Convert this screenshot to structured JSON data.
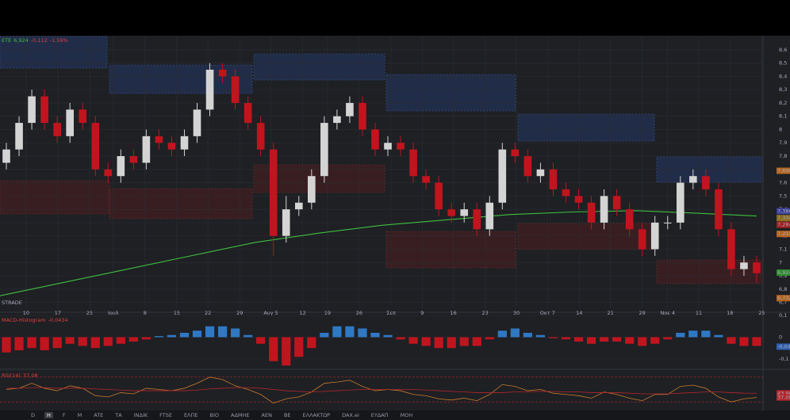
{
  "toolbar": {
    "items": [
      "D",
      "H",
      "F",
      "M",
      "ATE",
      "ΤΑ",
      "ΙΝΔΙΚ",
      "FTSE",
      "ΕΛΠΕ",
      "ΒΙΟ",
      "ΑΔΜΗΕ",
      "ΑΕΝ",
      "ΒΕ",
      "ΕΛΛΑΚΤΩΡ",
      "DAX.ei",
      "ΕΥΔΑΠ",
      "ΜΟΗ"
    ],
    "active": 1
  },
  "chart_data": [
    {
      "type": "candlestick",
      "symbol": "ETE",
      "last": "6,924",
      "change": "-0,112",
      "change_pct": "-1,59%",
      "watermark": "STRADE",
      "up_color": "#d4d4d4",
      "down_color": "#c0151e",
      "grid": true,
      "xlim": [
        0,
        120
      ],
      "ylim": [
        6.65,
        8.7
      ],
      "xticks": [
        {
          "value": 4.1,
          "label": "10"
        },
        {
          "value": 9.1,
          "label": "17"
        },
        {
          "value": 14.1,
          "label": "25"
        },
        {
          "value": 17.8,
          "label": "Ιουλ"
        },
        {
          "value": 22.8,
          "label": "8"
        },
        {
          "value": 27.8,
          "label": "15"
        },
        {
          "value": 32.7,
          "label": "22"
        },
        {
          "value": 37.7,
          "label": "29"
        },
        {
          "value": 42.6,
          "label": "Αυγ 5"
        },
        {
          "value": 47.6,
          "label": "12"
        },
        {
          "value": 51.5,
          "label": "19"
        },
        {
          "value": 56.5,
          "label": "26"
        },
        {
          "value": 61.5,
          "label": "Σεπ"
        },
        {
          "value": 66.4,
          "label": "9"
        },
        {
          "value": 71.3,
          "label": "16"
        },
        {
          "value": 76.3,
          "label": "23"
        },
        {
          "value": 81.2,
          "label": "30"
        },
        {
          "value": 86.1,
          "label": "Οκτ 7"
        },
        {
          "value": 91.1,
          "label": "14"
        },
        {
          "value": 96,
          "label": "21"
        },
        {
          "value": 101,
          "label": "29"
        },
        {
          "value": 105,
          "label": "Νοε 4"
        },
        {
          "value": 109.9,
          "label": "11"
        },
        {
          "value": 114.8,
          "label": "18"
        },
        {
          "value": 119.8,
          "label": "25"
        }
      ],
      "yticks": [
        {
          "value": 8.6,
          "label": "8,6"
        },
        {
          "value": 8.5,
          "label": "8,5"
        },
        {
          "value": 8.4,
          "label": "8,4"
        },
        {
          "value": 8.3,
          "label": "8,3"
        },
        {
          "value": 8.2,
          "label": "8,2"
        },
        {
          "value": 8.1,
          "label": "8,1"
        },
        8,
        {
          "value": 7.9,
          "label": "7,9"
        },
        {
          "value": 7.8,
          "label": "7,8"
        },
        {
          "value": 7.7,
          "label": "7,7"
        },
        {
          "value": 7.6,
          "label": "7,6"
        },
        {
          "value": 7.5,
          "label": "7,5"
        },
        {
          "value": 7.4,
          "label": "7,4"
        },
        {
          "value": 7.3,
          "label": "7,3"
        },
        {
          "value": 7.2,
          "label": "7,2"
        },
        {
          "value": 7.1,
          "label": "7,1"
        },
        7,
        {
          "value": 6.9,
          "label": "6,9"
        },
        {
          "value": 6.8,
          "label": "6,8"
        },
        {
          "value": 6.7,
          "label": "6,7"
        }
      ],
      "x": [
        1,
        3,
        5,
        7,
        9,
        11,
        13,
        15,
        17,
        19,
        21,
        23,
        25,
        27,
        29,
        31,
        33,
        35,
        37,
        39,
        41,
        43,
        45,
        47,
        49,
        51,
        53,
        55,
        57,
        59,
        61,
        63,
        65,
        67,
        69,
        71,
        73,
        75,
        77,
        79,
        81,
        83,
        85,
        87,
        89,
        91,
        93,
        95,
        97,
        99,
        101,
        103,
        105,
        107,
        109,
        111,
        113,
        115,
        117,
        119
      ],
      "open": [
        7.75,
        7.85,
        8.05,
        8.25,
        8.05,
        7.95,
        8.15,
        8.05,
        7.7,
        7.65,
        7.8,
        7.75,
        7.95,
        7.9,
        7.85,
        7.95,
        8.15,
        8.45,
        8.4,
        8.2,
        8.05,
        7.85,
        7.2,
        7.4,
        7.45,
        7.65,
        8.05,
        8.1,
        8.2,
        8.0,
        7.85,
        7.9,
        7.85,
        7.65,
        7.6,
        7.4,
        7.35,
        7.4,
        7.25,
        7.45,
        7.85,
        7.8,
        7.65,
        7.7,
        7.55,
        7.5,
        7.45,
        7.3,
        7.5,
        7.4,
        7.25,
        7.1,
        7.3,
        7.3,
        7.6,
        7.65,
        7.55,
        7.25,
        6.95,
        7.0
      ],
      "high": [
        7.9,
        8.1,
        8.3,
        8.3,
        8.1,
        8.2,
        8.2,
        8.1,
        7.75,
        7.85,
        7.85,
        8.0,
        8.0,
        7.95,
        8.0,
        8.2,
        8.5,
        8.5,
        8.45,
        8.25,
        8.1,
        7.9,
        7.5,
        7.5,
        7.7,
        8.1,
        8.15,
        8.25,
        8.25,
        8.05,
        7.95,
        7.95,
        7.9,
        7.7,
        7.65,
        7.45,
        7.45,
        7.45,
        7.5,
        7.9,
        7.9,
        7.85,
        7.75,
        7.75,
        7.6,
        7.55,
        7.5,
        7.55,
        7.55,
        7.45,
        7.3,
        7.35,
        7.35,
        7.65,
        7.7,
        7.7,
        7.6,
        7.3,
        7.05,
        7.05
      ],
      "low": [
        7.7,
        7.8,
        8.0,
        8.0,
        7.9,
        7.9,
        8.0,
        7.65,
        7.6,
        7.6,
        7.7,
        7.7,
        7.85,
        7.8,
        7.8,
        7.9,
        8.1,
        8.35,
        8.15,
        8.0,
        7.8,
        7.05,
        7.15,
        7.35,
        7.4,
        7.6,
        8.0,
        8.05,
        7.95,
        7.8,
        7.8,
        7.8,
        7.6,
        7.55,
        7.35,
        7.3,
        7.3,
        7.2,
        7.2,
        7.4,
        7.75,
        7.6,
        7.6,
        7.5,
        7.45,
        7.4,
        7.25,
        7.25,
        7.35,
        7.2,
        7.05,
        7.05,
        7.25,
        7.25,
        7.55,
        7.5,
        7.2,
        6.9,
        6.9,
        6.85
      ],
      "close": [
        7.85,
        8.05,
        8.25,
        8.05,
        7.95,
        8.15,
        8.05,
        7.7,
        7.65,
        7.8,
        7.75,
        7.95,
        7.9,
        7.85,
        7.95,
        8.15,
        8.45,
        8.4,
        8.2,
        8.05,
        7.85,
        7.2,
        7.4,
        7.45,
        7.65,
        8.05,
        8.1,
        8.2,
        8.0,
        7.85,
        7.9,
        7.85,
        7.65,
        7.6,
        7.4,
        7.35,
        7.4,
        7.25,
        7.45,
        7.85,
        7.8,
        7.65,
        7.7,
        7.55,
        7.5,
        7.45,
        7.3,
        7.5,
        7.4,
        7.25,
        7.1,
        7.3,
        7.3,
        7.6,
        7.65,
        7.55,
        7.25,
        6.95,
        7.0,
        6.92
      ],
      "overlays": [
        {
          "color": "#3fbf3f",
          "x": [
            0,
            10,
            20,
            30,
            40,
            50,
            60,
            70,
            80,
            90,
            100,
            110,
            119
          ],
          "values": [
            6.75,
            6.85,
            6.95,
            7.05,
            7.15,
            7.22,
            7.28,
            7.32,
            7.36,
            7.38,
            7.39,
            7.37,
            7.35
          ]
        }
      ],
      "price_tags": [
        {
          "value": 7.69,
          "label": "7,690",
          "color": "#b5651d"
        },
        {
          "value": 7.386,
          "label": "7,386",
          "color": "#3a3f9a"
        },
        {
          "value": 7.334,
          "label": "7,334",
          "color": "#8a6a1a"
        },
        {
          "value": 7.284,
          "label": "7,284",
          "color": "#a02020"
        },
        {
          "value": 7.215,
          "label": "7,215",
          "color": "#b5651d"
        },
        {
          "value": 6.924,
          "label": "6,924",
          "color": "#2d8a2d"
        },
        {
          "value": 6.732,
          "label": "6,732",
          "color": "#b5651d"
        }
      ]
    },
    {
      "type": "bar",
      "title": "MACD-Histogram",
      "title_value": "-0,0434",
      "pos_color": "#2f78c4",
      "neg_color": "#c0151e",
      "xlim": [
        0,
        120
      ],
      "ylim": [
        -0.14,
        0.1
      ],
      "yticks": [
        {
          "value": 0.1,
          "label": "0,1"
        },
        0,
        {
          "value": -0.1,
          "label": "-0,1"
        }
      ],
      "x": [
        1,
        3,
        5,
        7,
        9,
        11,
        13,
        15,
        17,
        19,
        21,
        23,
        25,
        27,
        29,
        31,
        33,
        35,
        37,
        39,
        41,
        43,
        45,
        47,
        49,
        51,
        53,
        55,
        57,
        59,
        61,
        63,
        65,
        67,
        69,
        71,
        73,
        75,
        77,
        79,
        81,
        83,
        85,
        87,
        89,
        91,
        93,
        95,
        97,
        99,
        101,
        103,
        105,
        107,
        109,
        111,
        113,
        115,
        117,
        119
      ],
      "values": [
        -0.07,
        -0.06,
        -0.05,
        -0.06,
        -0.05,
        -0.03,
        -0.04,
        -0.05,
        -0.04,
        -0.03,
        -0.02,
        -0.01,
        0.005,
        0.01,
        0.02,
        0.03,
        0.05,
        0.05,
        0.04,
        0.01,
        -0.03,
        -0.11,
        -0.13,
        -0.09,
        -0.05,
        0.02,
        0.05,
        0.05,
        0.04,
        0.02,
        0.01,
        -0.01,
        -0.03,
        -0.04,
        -0.05,
        -0.05,
        -0.04,
        -0.04,
        -0.01,
        0.03,
        0.04,
        0.02,
        0.01,
        -0.005,
        -0.01,
        -0.02,
        -0.03,
        -0.02,
        -0.02,
        -0.03,
        -0.04,
        -0.03,
        -0.01,
        0.02,
        0.03,
        0.03,
        0.01,
        -0.03,
        -0.04,
        -0.04
      ],
      "price_tags": [
        {
          "value": -0.0434,
          "label": "-0,0434",
          "color": "#2f5fb0"
        }
      ]
    },
    {
      "type": "line",
      "title": "RSI(14)",
      "title_value": "37,08",
      "xlim": [
        0,
        120
      ],
      "ylim": [
        20,
        80
      ],
      "levels": [
        70,
        30
      ],
      "level_color": "#b3262b",
      "x": [
        1,
        3,
        5,
        7,
        9,
        11,
        13,
        15,
        17,
        19,
        21,
        23,
        25,
        27,
        29,
        31,
        33,
        35,
        37,
        39,
        41,
        43,
        45,
        47,
        49,
        51,
        53,
        55,
        57,
        59,
        61,
        63,
        65,
        67,
        69,
        71,
        73,
        75,
        77,
        79,
        81,
        83,
        85,
        87,
        89,
        91,
        93,
        95,
        97,
        99,
        101,
        103,
        105,
        107,
        109,
        111,
        113,
        115,
        117,
        119
      ],
      "series": [
        {
          "color": "#c87a2a",
          "values": [
            50,
            52,
            60,
            52,
            48,
            56,
            52,
            40,
            38,
            45,
            43,
            52,
            50,
            48,
            52,
            60,
            70,
            66,
            56,
            50,
            42,
            28,
            35,
            38,
            46,
            60,
            62,
            65,
            55,
            48,
            50,
            48,
            42,
            40,
            35,
            33,
            36,
            32,
            42,
            58,
            55,
            48,
            50,
            44,
            42,
            40,
            36,
            46,
            42,
            36,
            32,
            42,
            42,
            55,
            57,
            52,
            38,
            30,
            35,
            37.08
          ]
        },
        {
          "color": "#b3262b",
          "values": [
            52,
            52,
            53,
            53,
            52,
            52,
            52,
            51,
            50,
            49,
            48,
            48,
            48,
            48,
            48,
            49,
            51,
            52,
            53,
            53,
            52,
            50,
            48,
            47,
            46,
            47,
            48,
            49,
            50,
            50,
            50,
            50,
            50,
            49,
            48,
            47,
            46,
            45,
            45,
            45,
            46,
            46,
            47,
            47,
            46,
            46,
            45,
            45,
            45,
            44,
            43,
            43,
            43,
            44,
            45,
            46,
            46,
            45,
            44,
            43.9
          ]
        }
      ],
      "price_tags": [
        {
          "value": 43.9,
          "label": "43,90",
          "color": "#b3262b"
        },
        {
          "value": 37.08,
          "label": "37,08",
          "color": "#b3262b"
        }
      ]
    }
  ]
}
